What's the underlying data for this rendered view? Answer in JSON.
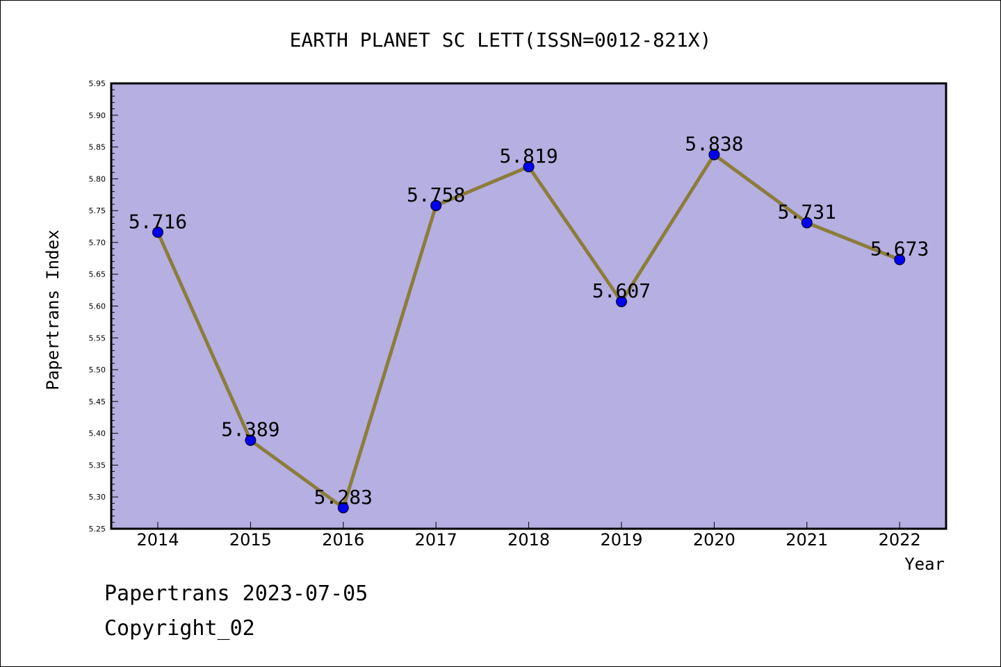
{
  "chart_data": {
    "type": "line",
    "title": "EARTH PLANET SC LETT(ISSN=0012-821X)",
    "xlabel": "Year",
    "ylabel": "Papertrans Index",
    "categories": [
      "2014",
      "2015",
      "2016",
      "2017",
      "2018",
      "2019",
      "2020",
      "2021",
      "2022"
    ],
    "values": [
      5.716,
      5.389,
      5.283,
      5.758,
      5.819,
      5.607,
      5.838,
      5.731,
      5.673
    ],
    "data_labels": [
      "5.716",
      "5.389",
      "5.283",
      "5.758",
      "5.819",
      "5.607",
      "5.838",
      "5.731",
      "5.673"
    ],
    "ylim": [
      5.25,
      5.95
    ],
    "yticks": [
      "5.25",
      "5.30",
      "5.35",
      "5.40",
      "5.45",
      "5.50",
      "5.55",
      "5.60",
      "5.65",
      "5.70",
      "5.75",
      "5.80",
      "5.85",
      "5.90",
      "5.95"
    ],
    "grid": false,
    "colors": {
      "plot_background": "#b5afe2",
      "line": "#8b7d3a",
      "marker": "#0000ee"
    }
  },
  "footer": {
    "line1": "Papertrans 2023-07-05",
    "line2": "Copyright_02"
  }
}
